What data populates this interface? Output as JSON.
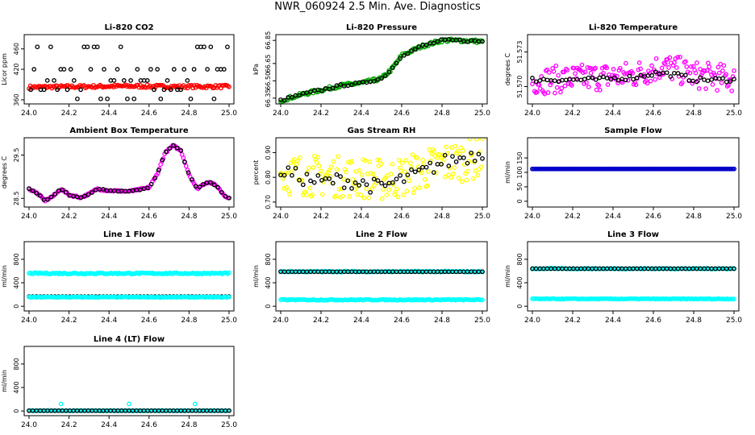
{
  "page": {
    "title": "NWR_060924  2.5 Min. Ave. Diagnostics"
  },
  "chart_data": [
    {
      "type": "scatter",
      "title": "Li-820 CO2",
      "ylabel": "Licor ppm",
      "xlim": [
        24.0,
        25.0
      ],
      "ylim": [
        352,
        488
      ],
      "xticks": [
        "24.0",
        "24.2",
        "24.4",
        "24.6",
        "24.8",
        "25.0"
      ],
      "yticks": [
        "360",
        "420",
        "460"
      ],
      "yticks_values": [
        360,
        420,
        460
      ],
      "series": [
        {
          "color": "#ff0000",
          "style": "dense",
          "values": [
            [
              24.0,
              385
            ],
            [
              24.25,
              386
            ],
            [
              24.5,
              387
            ],
            [
              24.75,
              386
            ],
            [
              25.0,
              386
            ]
          ],
          "band": 3
        },
        {
          "color": "#000000",
          "style": "discrete",
          "levels": [
            362,
            380,
            398,
            420,
            464
          ]
        }
      ],
      "grid": false,
      "legend": "none"
    },
    {
      "type": "scatter",
      "title": "Li-820 Pressure",
      "ylabel": "kPa",
      "xlim": [
        24.0,
        25.0
      ],
      "ylim": [
        66.3,
        66.9
      ],
      "xticks": [
        "24.0",
        "24.2",
        "24.4",
        "24.6",
        "24.8",
        "25.0"
      ],
      "yticks": [
        "66.35",
        "66.50",
        "66.65",
        "66.85"
      ],
      "yticks_values": [
        66.35,
        66.5,
        66.65,
        66.85
      ],
      "series": [
        {
          "color": "#00aa00",
          "style": "dense",
          "values": [
            [
              24.0,
              66.33
            ],
            [
              24.1,
              66.38
            ],
            [
              24.2,
              66.42
            ],
            [
              24.3,
              66.46
            ],
            [
              24.4,
              66.48
            ],
            [
              24.5,
              66.52
            ],
            [
              24.55,
              66.6
            ],
            [
              24.6,
              66.72
            ],
            [
              24.7,
              66.8
            ],
            [
              24.8,
              66.85
            ],
            [
              24.9,
              66.85
            ],
            [
              25.0,
              66.84
            ]
          ],
          "band": 0.015
        },
        {
          "color": "#000000",
          "style": "sparse",
          "values": [
            [
              24.0,
              66.33
            ],
            [
              24.1,
              66.38
            ],
            [
              24.2,
              66.42
            ],
            [
              24.3,
              66.46
            ],
            [
              24.4,
              66.48
            ],
            [
              24.5,
              66.52
            ],
            [
              24.55,
              66.6
            ],
            [
              24.6,
              66.72
            ],
            [
              24.7,
              66.8
            ],
            [
              24.8,
              66.85
            ],
            [
              24.9,
              66.85
            ],
            [
              25.0,
              66.84
            ]
          ],
          "band": 0.01
        }
      ],
      "grid": false,
      "legend": "none"
    },
    {
      "type": "scatter",
      "title": "Li-820 Temperature",
      "ylabel": "degrees C",
      "xlim": [
        24.0,
        25.0
      ],
      "ylim": [
        51.5685,
        51.5745
      ],
      "xticks": [
        "24.0",
        "24.2",
        "24.4",
        "24.6",
        "24.8",
        "25.0"
      ],
      "yticks": [
        "51.570",
        "51.573"
      ],
      "yticks_values": [
        51.57,
        51.573
      ],
      "series": [
        {
          "color": "#ff00ff",
          "style": "noisy",
          "values": [
            [
              24.0,
              51.5705
            ],
            [
              24.3,
              51.5708
            ],
            [
              24.5,
              51.571
            ],
            [
              24.65,
              51.5718
            ],
            [
              24.8,
              51.571
            ],
            [
              25.0,
              51.5707
            ]
          ],
          "band": 0.0012
        },
        {
          "color": "#000000",
          "style": "sparse",
          "values": [
            [
              24.0,
              51.5706
            ],
            [
              24.3,
              51.5706
            ],
            [
              24.5,
              51.5708
            ],
            [
              24.62,
              51.5712
            ],
            [
              24.72,
              51.571
            ],
            [
              24.8,
              51.5706
            ],
            [
              25.0,
              51.5706
            ]
          ],
          "band": 0.0002
        }
      ],
      "grid": false,
      "legend": "none"
    },
    {
      "type": "scatter",
      "title": "Ambient Box Temperature",
      "ylabel": "degrees C",
      "xlim": [
        24.0,
        25.0
      ],
      "ylim": [
        28.3,
        29.9
      ],
      "xticks": [
        "24.0",
        "24.2",
        "24.4",
        "24.6",
        "24.8",
        "25.0"
      ],
      "yticks": [
        "28.5",
        "29.5"
      ],
      "yticks_values": [
        28.5,
        29.5
      ],
      "series": [
        {
          "color": "#ff00ff",
          "style": "dense",
          "values": [
            [
              24.0,
              28.72
            ],
            [
              24.04,
              28.62
            ],
            [
              24.08,
              28.45
            ],
            [
              24.12,
              28.55
            ],
            [
              24.16,
              28.72
            ],
            [
              24.2,
              28.58
            ],
            [
              24.26,
              28.52
            ],
            [
              24.3,
              28.6
            ],
            [
              24.34,
              28.72
            ],
            [
              24.4,
              28.68
            ],
            [
              24.5,
              28.66
            ],
            [
              24.55,
              28.7
            ],
            [
              24.6,
              28.75
            ],
            [
              24.64,
              29.05
            ],
            [
              24.68,
              29.55
            ],
            [
              24.72,
              29.72
            ],
            [
              24.76,
              29.6
            ],
            [
              24.8,
              29.05
            ],
            [
              24.84,
              28.72
            ],
            [
              24.88,
              28.85
            ],
            [
              24.9,
              28.88
            ],
            [
              24.94,
              28.78
            ],
            [
              24.98,
              28.55
            ],
            [
              25.0,
              28.52
            ]
          ],
          "band": 0.02
        },
        {
          "color": "#000000",
          "style": "sparse",
          "values": [
            [
              24.0,
              28.72
            ],
            [
              24.04,
              28.62
            ],
            [
              24.08,
              28.45
            ],
            [
              24.12,
              28.55
            ],
            [
              24.16,
              28.72
            ],
            [
              24.2,
              28.58
            ],
            [
              24.26,
              28.52
            ],
            [
              24.3,
              28.6
            ],
            [
              24.34,
              28.72
            ],
            [
              24.4,
              28.68
            ],
            [
              24.5,
              28.66
            ],
            [
              24.55,
              28.7
            ],
            [
              24.6,
              28.75
            ],
            [
              24.64,
              29.05
            ],
            [
              24.68,
              29.55
            ],
            [
              24.72,
              29.72
            ],
            [
              24.76,
              29.6
            ],
            [
              24.8,
              29.05
            ],
            [
              24.84,
              28.72
            ],
            [
              24.88,
              28.85
            ],
            [
              24.9,
              28.88
            ],
            [
              24.94,
              28.78
            ],
            [
              24.98,
              28.55
            ],
            [
              25.0,
              28.52
            ]
          ],
          "band": 0.01
        }
      ],
      "grid": false,
      "legend": "none"
    },
    {
      "type": "scatter",
      "title": "Gas Stream RH",
      "ylabel": "percent",
      "xlim": [
        24.0,
        25.0
      ],
      "ylim": [
        0.68,
        0.96
      ],
      "xticks": [
        "24.0",
        "24.2",
        "24.4",
        "24.6",
        "24.8",
        "25.0"
      ],
      "yticks": [
        "0.70",
        "0.80",
        "0.90"
      ],
      "yticks_values": [
        0.7,
        0.8,
        0.9
      ],
      "series": [
        {
          "color": "#ffff00",
          "style": "noisy",
          "values": [
            [
              24.0,
              0.815
            ],
            [
              24.2,
              0.805
            ],
            [
              24.4,
              0.8
            ],
            [
              24.5,
              0.79
            ],
            [
              24.6,
              0.8
            ],
            [
              24.8,
              0.855
            ],
            [
              25.0,
              0.88
            ]
          ],
          "band": 0.085
        },
        {
          "color": "#000000",
          "style": "sparse",
          "values": [
            [
              24.0,
              0.83
            ],
            [
              24.1,
              0.8
            ],
            [
              24.2,
              0.78
            ],
            [
              24.3,
              0.79
            ],
            [
              24.4,
              0.775
            ],
            [
              24.5,
              0.76
            ],
            [
              24.6,
              0.79
            ],
            [
              24.7,
              0.82
            ],
            [
              24.8,
              0.86
            ],
            [
              24.9,
              0.88
            ],
            [
              25.0,
              0.9
            ]
          ],
          "band": 0.03
        }
      ],
      "grid": false,
      "legend": "none"
    },
    {
      "type": "scatter",
      "title": "Sample Flow",
      "ylabel": "ml/min",
      "xlim": [
        24.0,
        25.0
      ],
      "ylim": [
        -20,
        220
      ],
      "xticks": [
        "24.0",
        "24.2",
        "24.4",
        "24.6",
        "24.8",
        "25.0"
      ],
      "yticks": [
        "0",
        "50",
        "100",
        "150"
      ],
      "yticks_values": [
        0,
        50,
        100,
        150
      ],
      "series": [
        {
          "color": "#000000",
          "style": "dense",
          "values": [
            [
              24.0,
              112
            ],
            [
              25.0,
              112
            ]
          ],
          "band": 0
        },
        {
          "color": "#0000cc",
          "style": "dense",
          "values": [
            [
              24.0,
              112
            ],
            [
              25.0,
              112
            ]
          ],
          "band": 0
        }
      ],
      "grid": false,
      "legend": "none"
    },
    {
      "type": "scatter",
      "title": "Line 1 Flow",
      "ylabel": "ml/min",
      "xlim": [
        24.0,
        25.0
      ],
      "ylim": [
        -80,
        1100
      ],
      "xticks": [
        "24.0",
        "24.2",
        "24.4",
        "24.6",
        "24.8",
        "25.0"
      ],
      "yticks": [
        "0",
        "400",
        "800"
      ],
      "yticks_values": [
        0,
        400,
        800
      ],
      "series": [
        {
          "color": "#00ffff",
          "style": "dense",
          "values": [
            [
              24.0,
              560
            ],
            [
              25.0,
              560
            ]
          ],
          "band": 12
        },
        {
          "color": "#000000",
          "style": "sparse",
          "values": [
            [
              24.0,
              165
            ],
            [
              25.0,
              165
            ]
          ],
          "band": 0
        },
        {
          "color": "#00ffff",
          "style": "dense",
          "values": [
            [
              24.0,
              155
            ],
            [
              25.0,
              155
            ]
          ],
          "band": 6
        }
      ],
      "grid": false,
      "legend": "none"
    },
    {
      "type": "scatter",
      "title": "Line 2 Flow",
      "ylabel": "ml/min",
      "xlim": [
        24.0,
        25.0
      ],
      "ylim": [
        -80,
        1100
      ],
      "xticks": [
        "24.0",
        "24.2",
        "24.4",
        "24.6",
        "24.8",
        "25.0"
      ],
      "yticks": [
        "0",
        "400",
        "800"
      ],
      "yticks_values": [
        0,
        400,
        800
      ],
      "series": [
        {
          "color": "#00ffff",
          "style": "dense",
          "values": [
            [
              24.0,
              590
            ],
            [
              25.0,
              590
            ]
          ],
          "band": 10
        },
        {
          "color": "#000000",
          "style": "sparse",
          "values": [
            [
              24.0,
              588
            ],
            [
              25.0,
              588
            ]
          ],
          "band": 0
        },
        {
          "color": "#00ffff",
          "style": "dense",
          "values": [
            [
              24.0,
              110
            ],
            [
              25.0,
              110
            ]
          ],
          "band": 8
        }
      ],
      "grid": false,
      "legend": "none"
    },
    {
      "type": "scatter",
      "title": "Line 3 Flow",
      "ylabel": "ml/min",
      "xlim": [
        24.0,
        25.0
      ],
      "ylim": [
        -80,
        1100
      ],
      "xticks": [
        "24.0",
        "24.2",
        "24.4",
        "24.6",
        "24.8",
        "25.0"
      ],
      "yticks": [
        "0",
        "400",
        "800"
      ],
      "yticks_values": [
        0,
        400,
        800
      ],
      "series": [
        {
          "color": "#00ffff",
          "style": "dense",
          "values": [
            [
              24.0,
              640
            ],
            [
              25.0,
              640
            ]
          ],
          "band": 8
        },
        {
          "color": "#000000",
          "style": "sparse",
          "values": [
            [
              24.0,
              640
            ],
            [
              25.0,
              640
            ]
          ],
          "band": 0
        },
        {
          "color": "#00ffff",
          "style": "dense",
          "values": [
            [
              24.0,
              125
            ],
            [
              25.0,
              125
            ]
          ],
          "band": 6
        }
      ],
      "grid": false,
      "legend": "none"
    },
    {
      "type": "scatter",
      "title": "Line 4 (LT) Flow",
      "ylabel": "ml/min",
      "xlim": [
        24.0,
        25.0
      ],
      "ylim": [
        -80,
        1100
      ],
      "xticks": [
        "24.0",
        "24.2",
        "24.4",
        "24.6",
        "24.8",
        "25.0"
      ],
      "yticks": [
        "0",
        "400",
        "800"
      ],
      "yticks_values": [
        0,
        400,
        800
      ],
      "series": [
        {
          "color": "#00ffff",
          "style": "dense",
          "values": [
            [
              24.0,
              5
            ],
            [
              25.0,
              5
            ]
          ],
          "band": 4
        },
        {
          "color": "#000000",
          "style": "sparse",
          "values": [
            [
              24.0,
              5
            ],
            [
              25.0,
              5
            ]
          ],
          "band": 0
        },
        {
          "color": "#00ffff",
          "style": "outliers",
          "values": [
            [
              24.16,
              120
            ],
            [
              24.5,
              120
            ],
            [
              24.83,
              120
            ]
          ],
          "band": 0
        }
      ],
      "grid": false,
      "legend": "none"
    }
  ]
}
